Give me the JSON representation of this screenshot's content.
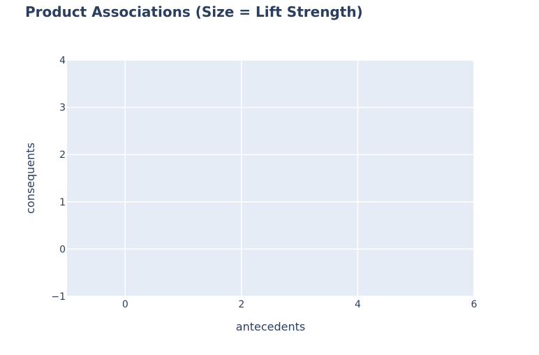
{
  "chart_data": {
    "type": "scatter",
    "title": "Product Associations (Size = Lift Strength)",
    "xlabel": "antecedents",
    "ylabel": "consequents",
    "xlim": [
      -1,
      6
    ],
    "ylim": [
      -1,
      4
    ],
    "xticks": [
      0,
      2,
      4,
      6
    ],
    "yticks": [
      -1,
      0,
      1,
      2,
      3,
      4
    ],
    "xtick_labels": [
      "0",
      "2",
      "4",
      "6"
    ],
    "ytick_labels": [
      "−1",
      "0",
      "1",
      "2",
      "3",
      "4"
    ],
    "series": [],
    "grid": true,
    "colors": {
      "plot_background": "#e5ecf6",
      "grid": "#ffffff",
      "text": "#2a3f5f"
    }
  }
}
